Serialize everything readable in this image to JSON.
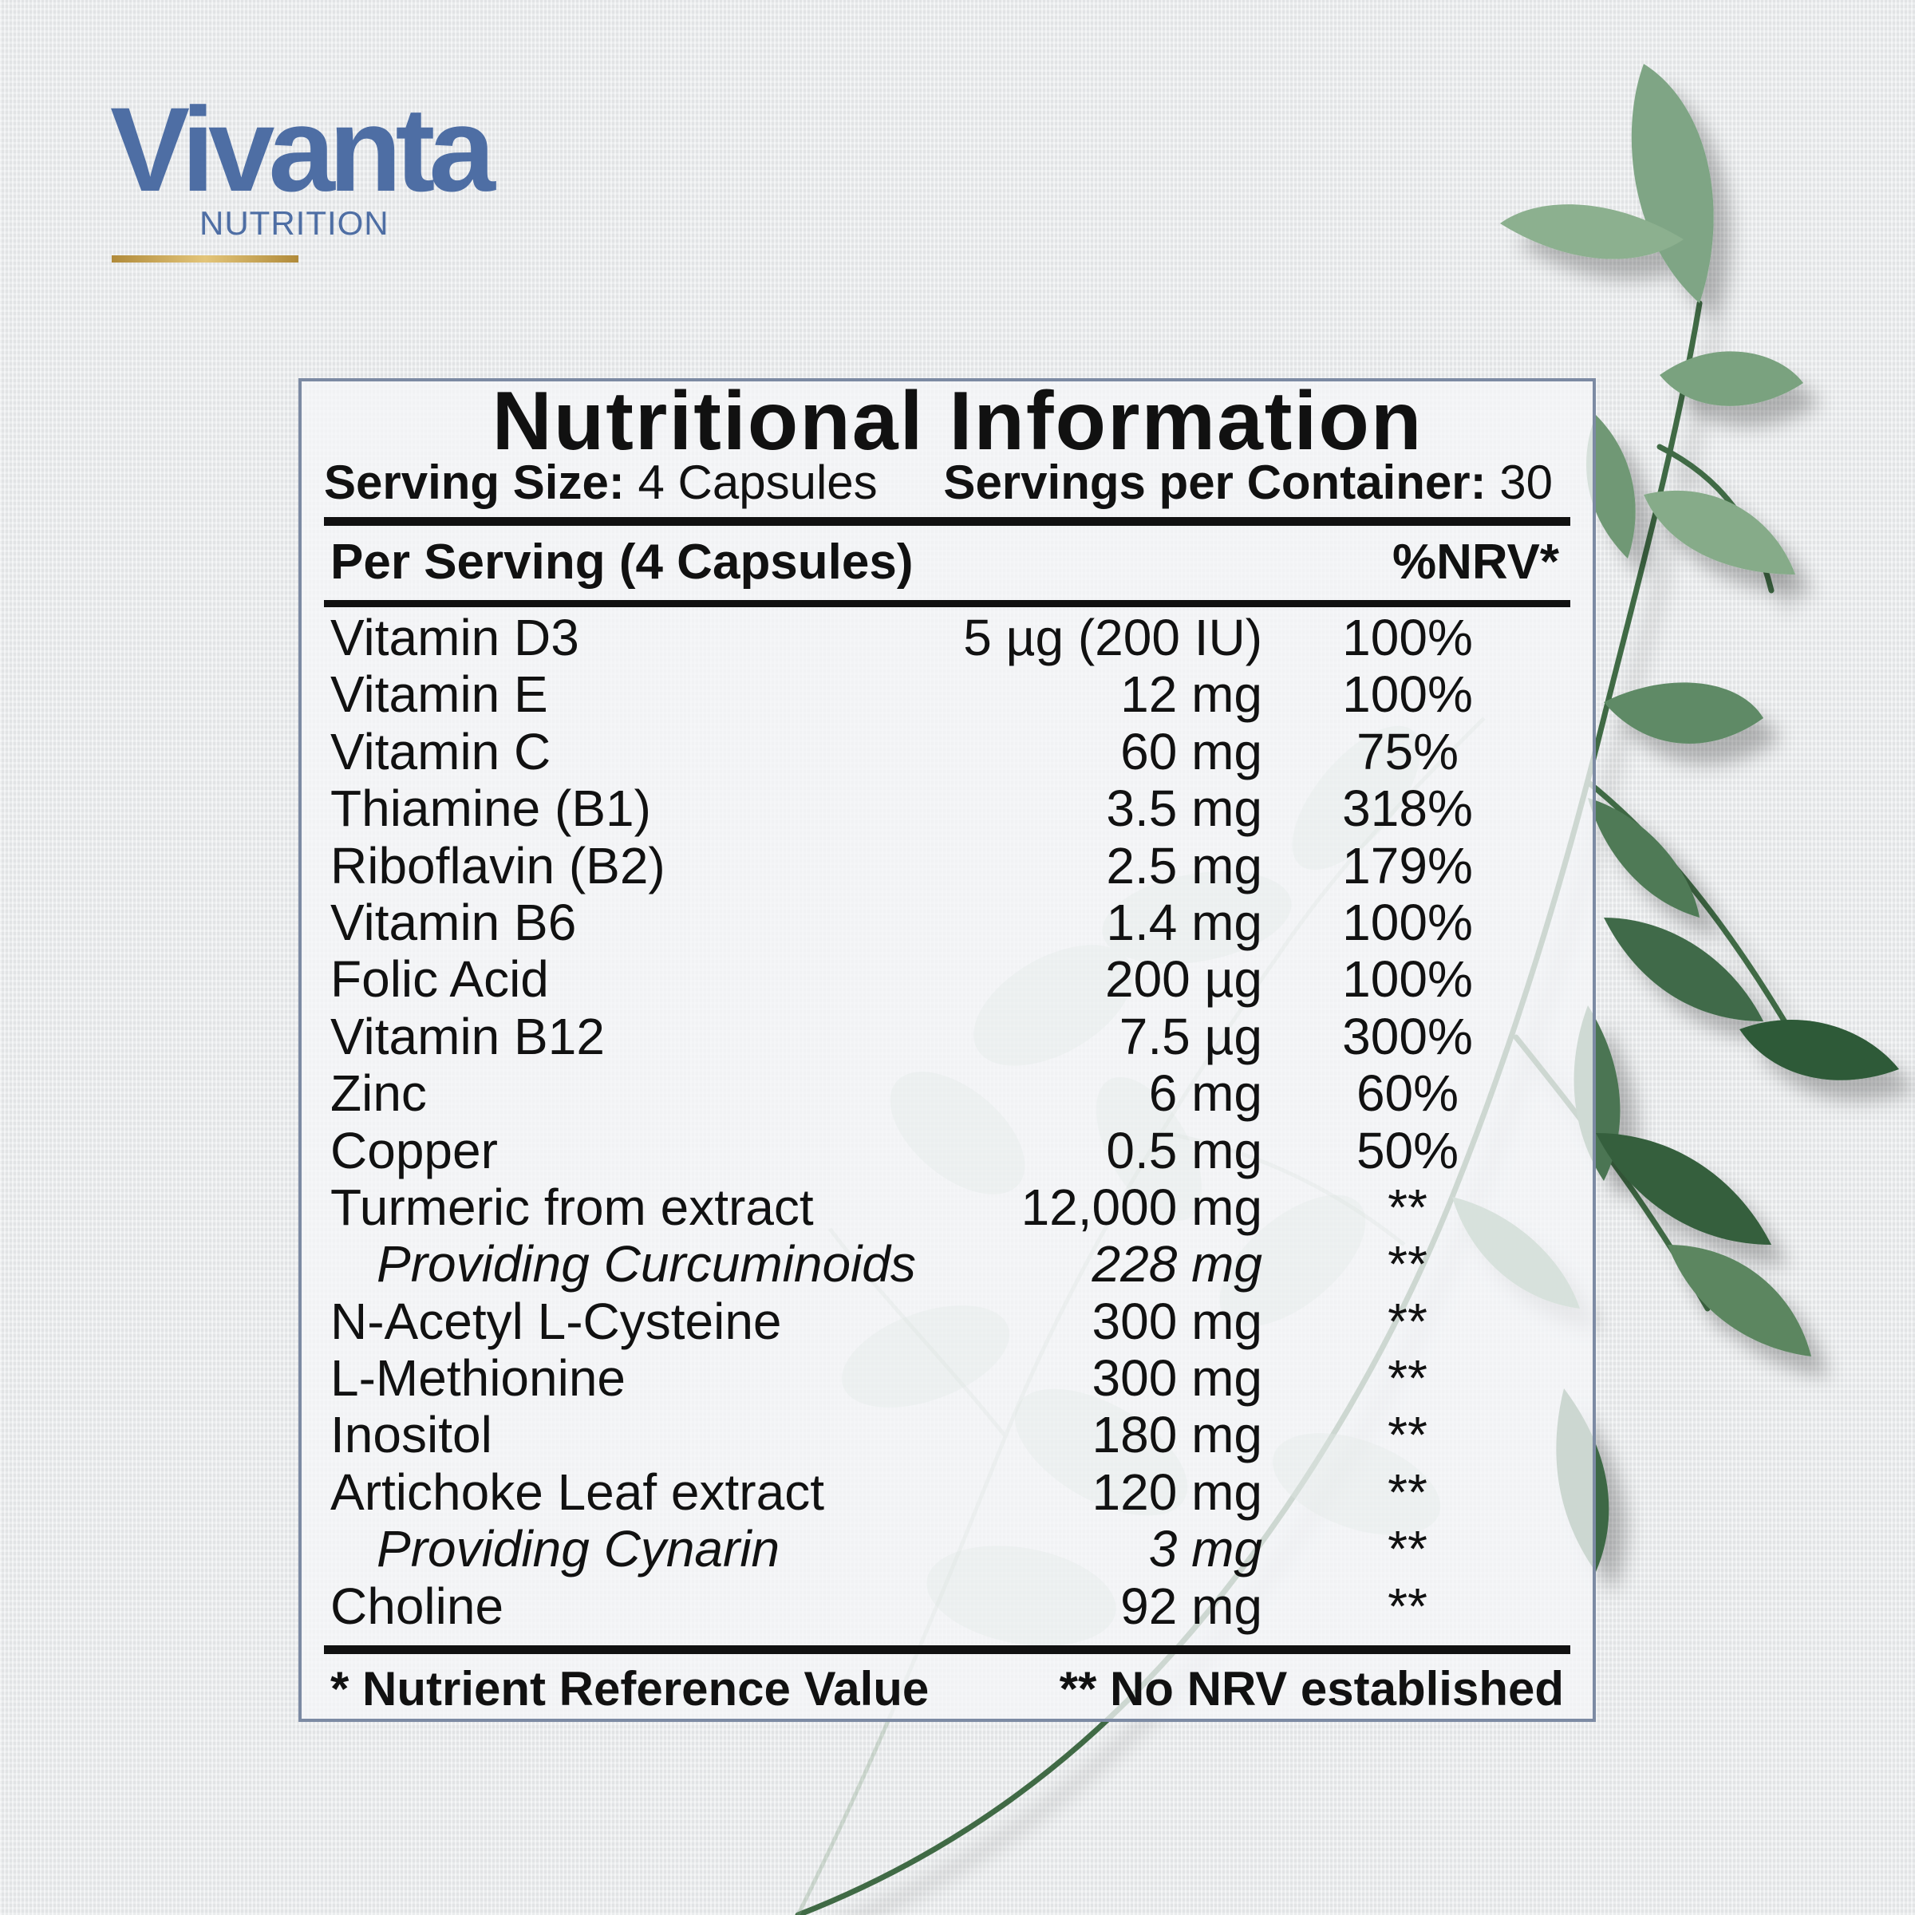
{
  "brand": {
    "name": "Vivanta",
    "subtitle": "NUTRITION",
    "color": "#4e6ea4",
    "accent_color": "#c9a55a"
  },
  "label": {
    "title": "Nutritional Information",
    "serving_size_label": "Serving Size:",
    "serving_size_value": "4 Capsules",
    "servings_per_container_label": "Servings per Container:",
    "servings_per_container_value": "30",
    "column_header_left": "Per Serving (4 Capsules)",
    "column_header_right": "%NRV*",
    "rows": [
      {
        "name": "Vitamin D3",
        "amount": "5 µg (200 IU)",
        "nrv": "100%"
      },
      {
        "name": "Vitamin E",
        "amount": "12 mg",
        "nrv": "100%"
      },
      {
        "name": "Vitamin C",
        "amount": "60 mg",
        "nrv": "75%"
      },
      {
        "name": "Thiamine (B1)",
        "amount": "3.5 mg",
        "nrv": "318%"
      },
      {
        "name": "Riboflavin (B2)",
        "amount": "2.5 mg",
        "nrv": "179%"
      },
      {
        "name": "Vitamin B6",
        "amount": "1.4 mg",
        "nrv": "100%"
      },
      {
        "name": "Folic Acid",
        "amount": "200 µg",
        "nrv": "100%"
      },
      {
        "name": "Vitamin B12",
        "amount": "7.5 µg",
        "nrv": "300%"
      },
      {
        "name": "Zinc",
        "amount": "6 mg",
        "nrv": "60%"
      },
      {
        "name": "Copper",
        "amount": "0.5 mg",
        "nrv": "50%"
      },
      {
        "name": "Turmeric from extract",
        "amount": "12,000 mg",
        "nrv": "**"
      },
      {
        "name": "Providing Curcuminoids",
        "amount": "228 mg",
        "nrv": "**"
      },
      {
        "name": "N-Acetyl L-Cysteine",
        "amount": "300 mg",
        "nrv": "**"
      },
      {
        "name": "L-Methionine",
        "amount": "300 mg",
        "nrv": "**"
      },
      {
        "name": "Inositol",
        "amount": "180 mg",
        "nrv": "**"
      },
      {
        "name": "Artichoke Leaf extract",
        "amount": "120 mg",
        "nrv": "**"
      },
      {
        "name": "Providing Cynarin",
        "amount": "3 mg",
        "nrv": "**"
      },
      {
        "name": "Choline",
        "amount": "92 mg",
        "nrv": "**"
      }
    ],
    "footnote_left": "* Nutrient Reference Value",
    "footnote_right": "** No NRV established"
  }
}
